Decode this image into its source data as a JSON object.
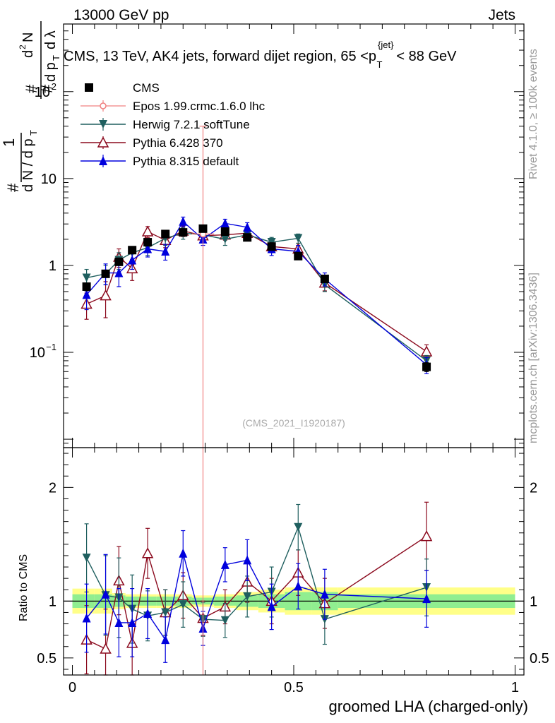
{
  "header": {
    "left": "13000 GeV pp",
    "right": "Jets",
    "side_rivet": "Rivet 4.1.0, ≥ 100k events",
    "side_mcplots": "mcplots.cern.ch [arXiv:1306.3436]",
    "watermark": "(CMS_2021_I1920187)"
  },
  "chart_data": {
    "type": "line",
    "title_pre": "CMS, 13 TeV, AK4 jets, forward dijet region, 65 <p",
    "title_sup": "{jet}",
    "title_sub": "T",
    "title_post": "< 88 GeV",
    "xlabel": "groomed LHA (charged-only)",
    "ylabel_main": "1/N dN/dp_T d²N/dp_T dλ",
    "ylabel_ratio": "Ratio to CMS",
    "xlim": [
      -0.02,
      1.02
    ],
    "ylim_main": [
      0.008,
      600
    ],
    "ylim_ratio": [
      0.35,
      2.35
    ],
    "x_ticks": [
      {
        "v": 0,
        "label": "0"
      },
      {
        "v": 0.5,
        "label": "0.5"
      },
      {
        "v": 1,
        "label": "1"
      }
    ],
    "y_ticks_main": [
      {
        "v": 0.1,
        "base": "10",
        "exp": "−1"
      },
      {
        "v": 1,
        "base": "1",
        "exp": ""
      },
      {
        "v": 10,
        "base": "10",
        "exp": ""
      },
      {
        "v": 100,
        "base": "10",
        "exp": "2"
      }
    ],
    "y_ticks_ratio": [
      {
        "v": 0.5,
        "label": "0.5"
      },
      {
        "v": 1,
        "label": "1"
      },
      {
        "v": 2,
        "label": "2"
      }
    ],
    "bin_edges": [
      0,
      0.05,
      0.09,
      0.12,
      0.15,
      0.19,
      0.23,
      0.27,
      0.32,
      0.37,
      0.42,
      0.48,
      0.54,
      0.6,
      1.0
    ],
    "x": [
      0.032,
      0.075,
      0.105,
      0.135,
      0.17,
      0.21,
      0.25,
      0.295,
      0.345,
      0.395,
      0.45,
      0.51,
      0.57,
      0.8
    ],
    "band_yellow": [
      0.11,
      0.11,
      0.07,
      0.06,
      0.06,
      0.06,
      0.06,
      0.05,
      0.06,
      0.08,
      0.1,
      0.12,
      0.12,
      0.12
    ],
    "band_green": [
      0.06,
      0.06,
      0.05,
      0.04,
      0.04,
      0.04,
      0.04,
      0.03,
      0.04,
      0.05,
      0.06,
      0.08,
      0.08,
      0.06
    ],
    "series": [
      {
        "name": "CMS",
        "color": "#000000",
        "marker": "square",
        "line": false,
        "values": [
          0.57,
          0.8,
          1.1,
          1.5,
          1.85,
          2.3,
          2.4,
          2.65,
          2.45,
          2.1,
          1.65,
          1.28,
          0.7,
          0.068
        ],
        "errors": [
          0.06,
          0.06,
          0.07,
          0.09,
          0.1,
          0.11,
          0.11,
          0.12,
          0.11,
          0.11,
          0.1,
          0.08,
          0.06,
          0.008
        ]
      },
      {
        "name": "Epos 1.99.crmc.1.6.0 lhc",
        "color": "#f08080",
        "marker": "open-circle",
        "line": false,
        "points": [
          {
            "x": 0.295,
            "y": 2.3,
            "err_lo_y": 0.003,
            "err_hi_y": 40,
            "xerr": 0.025
          }
        ]
      },
      {
        "name": "Herwig 7.2.1 softTune",
        "color": "#1f5f5f",
        "marker": "triangle-down",
        "line": true,
        "values": [
          0.72,
          0.8,
          1.15,
          1.4,
          1.6,
          2.05,
          2.35,
          2.25,
          2.0,
          2.25,
          1.85,
          2.05,
          0.6,
          0.08
        ],
        "errors": [
          0.18,
          0.2,
          0.25,
          0.25,
          0.3,
          0.35,
          0.35,
          0.3,
          0.3,
          0.3,
          0.25,
          0.25,
          0.1,
          0.012
        ],
        "ratio": [
          1.38,
          1.05,
          1.03,
          0.93,
          0.87,
          0.9,
          0.97,
          0.84,
          0.83,
          1.04,
          1.08,
          1.65,
          0.84,
          1.12
        ],
        "ratio_err": [
          0.3,
          0.35,
          0.35,
          0.3,
          0.22,
          0.2,
          0.2,
          0.15,
          0.15,
          0.18,
          0.22,
          0.2,
          0.22,
          0.25
        ]
      },
      {
        "name": "Pythia 6.428 370",
        "color": "#8b0a1e",
        "marker": "open-triangle",
        "line": true,
        "values": [
          0.36,
          0.45,
          1.25,
          0.92,
          2.45,
          1.95,
          2.5,
          2.2,
          2.25,
          2.35,
          1.65,
          1.55,
          0.63,
          0.102
        ],
        "errors": [
          0.12,
          0.2,
          0.3,
          0.25,
          0.35,
          0.35,
          0.35,
          0.3,
          0.3,
          0.3,
          0.25,
          0.25,
          0.12,
          0.02
        ],
        "ratio": [
          0.66,
          0.58,
          1.18,
          0.63,
          1.42,
          0.9,
          1.05,
          0.85,
          0.95,
          1.17,
          1.0,
          1.25,
          0.98,
          1.57
        ],
        "ratio_err": [
          0.3,
          0.35,
          0.3,
          0.3,
          0.22,
          0.2,
          0.2,
          0.15,
          0.15,
          0.18,
          0.2,
          0.2,
          0.22,
          0.3
        ]
      },
      {
        "name": "Pythia 8.315 default",
        "color": "#0000dd",
        "marker": "triangle-up",
        "line": true,
        "values": [
          0.46,
          0.82,
          0.82,
          1.15,
          1.55,
          1.45,
          3.2,
          2.0,
          3.05,
          2.75,
          1.55,
          1.45,
          0.7,
          0.072
        ],
        "errors": [
          0.15,
          0.22,
          0.25,
          0.25,
          0.3,
          0.3,
          0.4,
          0.3,
          0.35,
          0.35,
          0.25,
          0.25,
          0.12,
          0.015
        ],
        "ratio": [
          0.85,
          1.06,
          0.81,
          0.81,
          0.89,
          0.66,
          1.42,
          0.76,
          1.32,
          1.36,
          0.95,
          1.13,
          1.06,
          1.02
        ],
        "ratio_err": [
          0.3,
          0.35,
          0.3,
          0.3,
          0.22,
          0.2,
          0.2,
          0.15,
          0.15,
          0.18,
          0.2,
          0.2,
          0.22,
          0.25
        ]
      }
    ]
  }
}
